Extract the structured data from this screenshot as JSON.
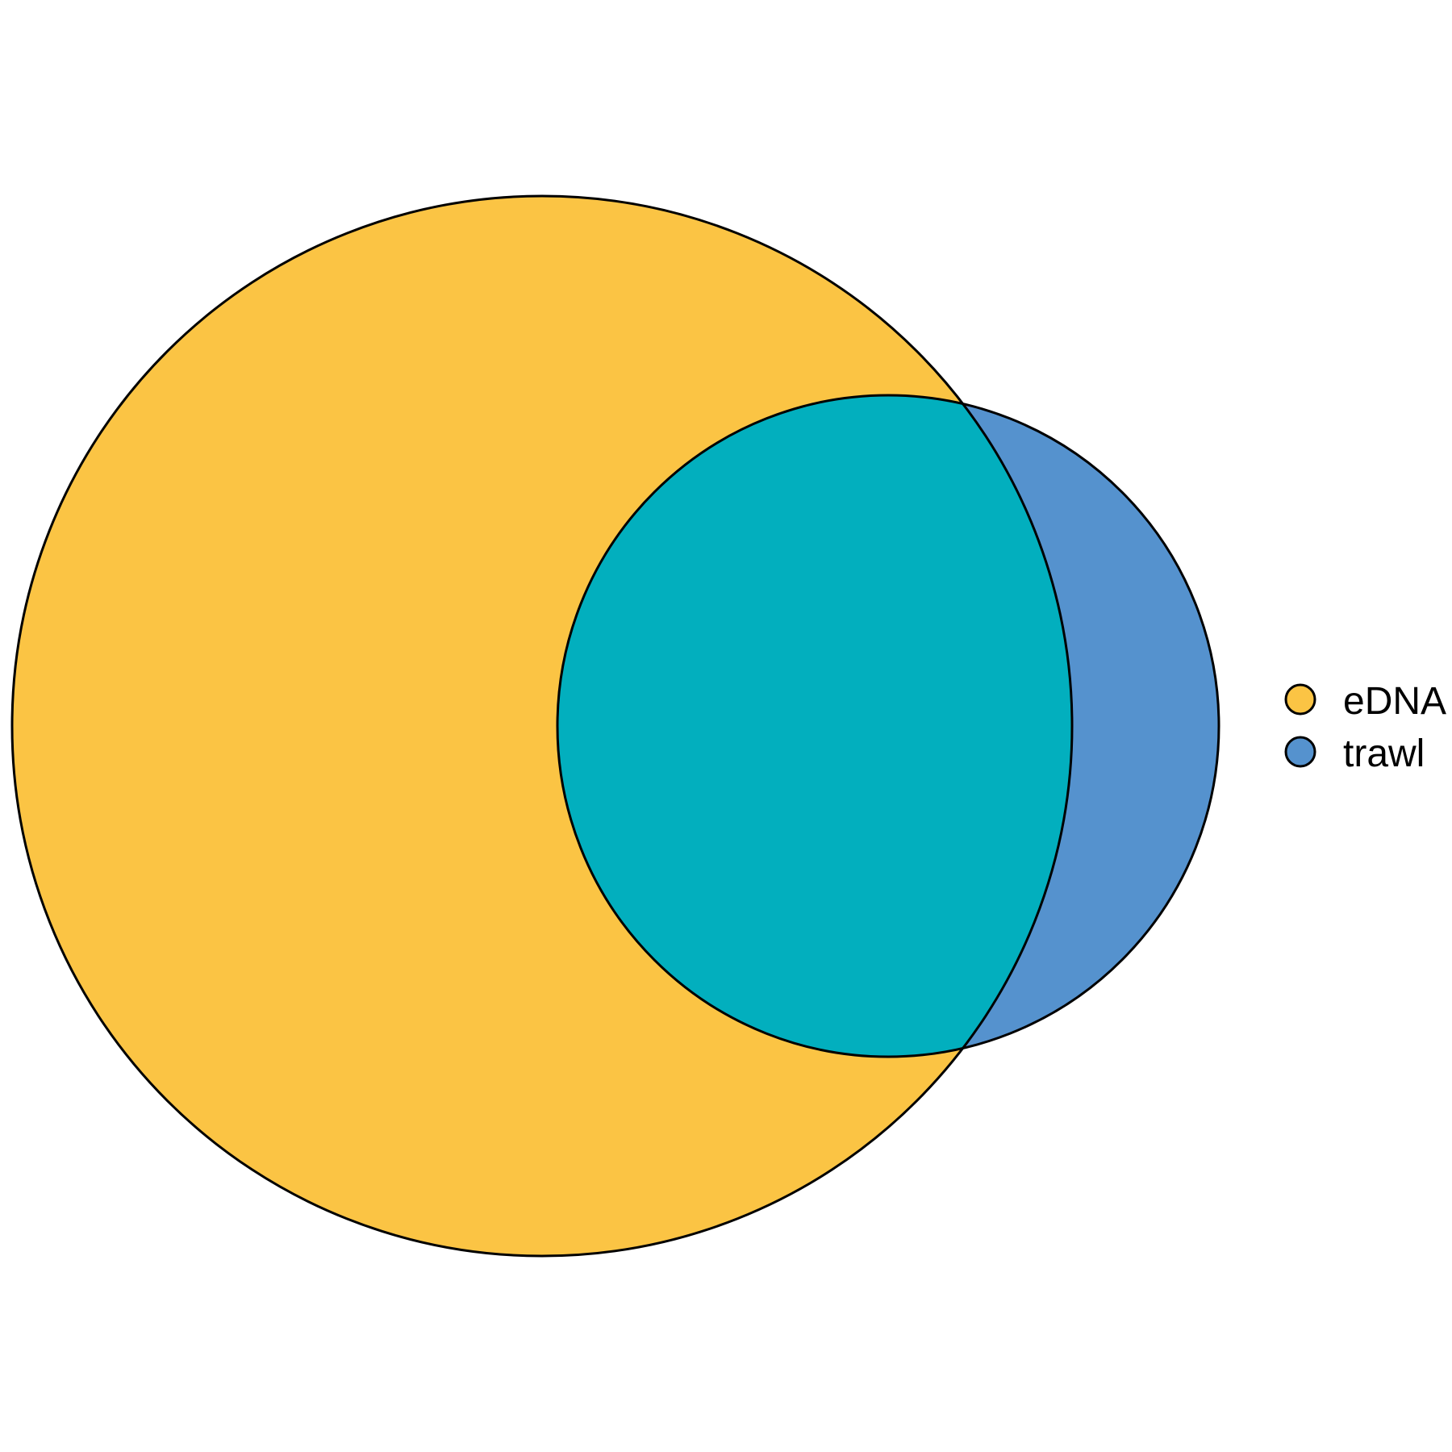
{
  "diagram": {
    "type": "venn",
    "sets": [
      {
        "id": "edna",
        "label": "eDNA",
        "color": "#FBC444"
      },
      {
        "id": "trawl",
        "label": "trawl",
        "color": "#5592CE"
      }
    ],
    "overlap_color": "#02AFBE",
    "outline_color": "#000000"
  },
  "legend": {
    "items": [
      {
        "label": "eDNA",
        "color": "#FBC444"
      },
      {
        "label": "trawl",
        "color": "#5592CE"
      }
    ]
  }
}
